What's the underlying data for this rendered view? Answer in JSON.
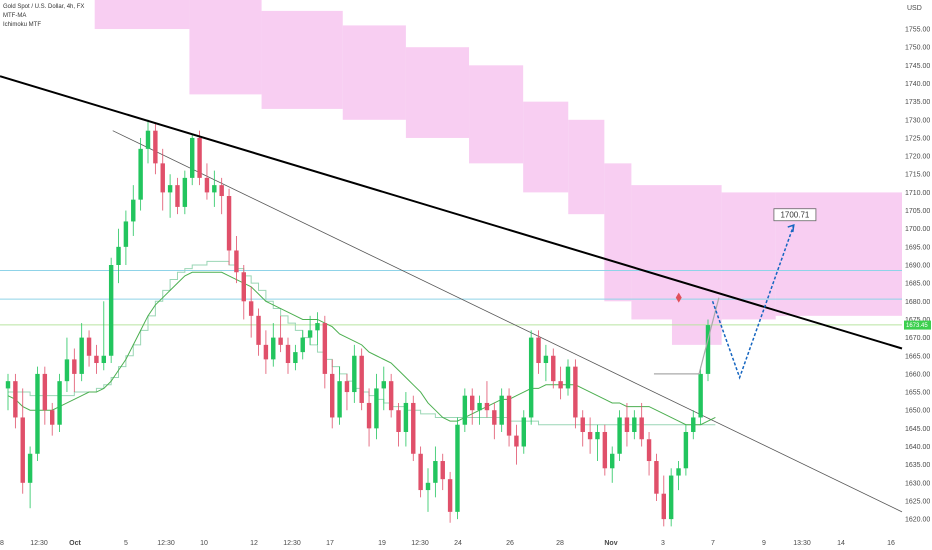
{
  "legend": {
    "symbol": "Gold Spot / U.S. Dollar, 4h, FX",
    "indicator_1": "MTF-MA",
    "indicator_2": "Ichimoku MTF"
  },
  "colors": {
    "background": "#ffffff",
    "bull": "#22c55e",
    "bear": "#e0506a",
    "cloud": "#f7c6f0",
    "ma": "#4caf50",
    "ichimoku": "#9ad6b5",
    "resistance": "#000000",
    "trendline": "#555555",
    "horizontal": "#8fd3e8",
    "projection": "#1565c0",
    "price_tag": "#3ccf4e"
  },
  "chart_data": {
    "type": "candlestick",
    "title": "Gold Spot / U.S. Dollar, 4h, FX",
    "currency": "USD",
    "ylim": [
      1617,
      1763
    ],
    "y_ticks": [
      1620,
      1625,
      1630,
      1635,
      1640,
      1645,
      1650,
      1655,
      1660,
      1665,
      1670,
      1675,
      1680,
      1685,
      1690,
      1695,
      1700,
      1705,
      1710,
      1715,
      1720,
      1725,
      1730,
      1735,
      1740,
      1745,
      1750,
      1755
    ],
    "x_tick_labels": [
      {
        "label": "8",
        "bold": false
      },
      {
        "label": "12:30",
        "bold": false
      },
      {
        "label": "Oct",
        "bold": true
      },
      {
        "label": "5",
        "bold": false
      },
      {
        "label": "12:30",
        "bold": false
      },
      {
        "label": "10",
        "bold": false
      },
      {
        "label": "12",
        "bold": false
      },
      {
        "label": "12:30",
        "bold": false
      },
      {
        "label": "17",
        "bold": false
      },
      {
        "label": "19",
        "bold": false
      },
      {
        "label": "12:30",
        "bold": false
      },
      {
        "label": "24",
        "bold": false
      },
      {
        "label": "26",
        "bold": false
      },
      {
        "label": "28",
        "bold": false
      },
      {
        "label": "Nov",
        "bold": true
      },
      {
        "label": "3",
        "bold": false
      },
      {
        "label": "7",
        "bold": false
      },
      {
        "label": "9",
        "bold": false
      },
      {
        "label": "13:30",
        "bold": false
      },
      {
        "label": "14",
        "bold": false
      },
      {
        "label": "16",
        "bold": false
      }
    ],
    "current_price_label": "1673.45",
    "target_label": "1700.71",
    "horizontal_levels": [
      1688.5,
      1680.6,
      1673.5
    ],
    "candles": [
      {
        "o": 1656,
        "h": 1660,
        "l": 1650,
        "c": 1658
      },
      {
        "o": 1658,
        "h": 1660,
        "l": 1645,
        "c": 1648
      },
      {
        "o": 1648,
        "h": 1656,
        "l": 1627,
        "c": 1630
      },
      {
        "o": 1630,
        "h": 1640,
        "l": 1623,
        "c": 1638
      },
      {
        "o": 1638,
        "h": 1662,
        "l": 1636,
        "c": 1660
      },
      {
        "o": 1660,
        "h": 1662,
        "l": 1646,
        "c": 1650
      },
      {
        "o": 1650,
        "h": 1652,
        "l": 1643,
        "c": 1646
      },
      {
        "o": 1646,
        "h": 1660,
        "l": 1644,
        "c": 1658
      },
      {
        "o": 1658,
        "h": 1670,
        "l": 1655,
        "c": 1664
      },
      {
        "o": 1664,
        "h": 1667,
        "l": 1655,
        "c": 1660
      },
      {
        "o": 1660,
        "h": 1674,
        "l": 1658,
        "c": 1670
      },
      {
        "o": 1670,
        "h": 1672,
        "l": 1662,
        "c": 1665
      },
      {
        "o": 1665,
        "h": 1668,
        "l": 1660,
        "c": 1663
      },
      {
        "o": 1663,
        "h": 1680,
        "l": 1661,
        "c": 1665
      },
      {
        "o": 1665,
        "h": 1692,
        "l": 1663,
        "c": 1690
      },
      {
        "o": 1690,
        "h": 1700,
        "l": 1685,
        "c": 1695
      },
      {
        "o": 1695,
        "h": 1705,
        "l": 1690,
        "c": 1702
      },
      {
        "o": 1702,
        "h": 1712,
        "l": 1698,
        "c": 1708
      },
      {
        "o": 1708,
        "h": 1725,
        "l": 1705,
        "c": 1722
      },
      {
        "o": 1722,
        "h": 1730,
        "l": 1718,
        "c": 1727
      },
      {
        "o": 1727,
        "h": 1729,
        "l": 1715,
        "c": 1718
      },
      {
        "o": 1718,
        "h": 1722,
        "l": 1705,
        "c": 1710
      },
      {
        "o": 1710,
        "h": 1715,
        "l": 1703,
        "c": 1712
      },
      {
        "o": 1712,
        "h": 1714,
        "l": 1704,
        "c": 1706
      },
      {
        "o": 1706,
        "h": 1716,
        "l": 1704,
        "c": 1714
      },
      {
        "o": 1714,
        "h": 1726,
        "l": 1712,
        "c": 1725
      },
      {
        "o": 1725,
        "h": 1727,
        "l": 1712,
        "c": 1714
      },
      {
        "o": 1714,
        "h": 1718,
        "l": 1708,
        "c": 1710
      },
      {
        "o": 1710,
        "h": 1716,
        "l": 1706,
        "c": 1712
      },
      {
        "o": 1712,
        "h": 1714,
        "l": 1704,
        "c": 1709
      },
      {
        "o": 1709,
        "h": 1711,
        "l": 1690,
        "c": 1694
      },
      {
        "o": 1694,
        "h": 1698,
        "l": 1685,
        "c": 1688
      },
      {
        "o": 1688,
        "h": 1690,
        "l": 1675,
        "c": 1680
      },
      {
        "o": 1680,
        "h": 1684,
        "l": 1670,
        "c": 1676
      },
      {
        "o": 1676,
        "h": 1678,
        "l": 1665,
        "c": 1668
      },
      {
        "o": 1668,
        "h": 1672,
        "l": 1660,
        "c": 1664
      },
      {
        "o": 1664,
        "h": 1674,
        "l": 1662,
        "c": 1670
      },
      {
        "o": 1670,
        "h": 1676,
        "l": 1666,
        "c": 1668
      },
      {
        "o": 1668,
        "h": 1670,
        "l": 1660,
        "c": 1663
      },
      {
        "o": 1663,
        "h": 1668,
        "l": 1661,
        "c": 1666
      },
      {
        "o": 1666,
        "h": 1672,
        "l": 1664,
        "c": 1670
      },
      {
        "o": 1670,
        "h": 1676,
        "l": 1668,
        "c": 1672
      },
      {
        "o": 1672,
        "h": 1677,
        "l": 1668,
        "c": 1674
      },
      {
        "o": 1674,
        "h": 1676,
        "l": 1656,
        "c": 1660
      },
      {
        "o": 1660,
        "h": 1664,
        "l": 1645,
        "c": 1648
      },
      {
        "o": 1648,
        "h": 1662,
        "l": 1646,
        "c": 1658
      },
      {
        "o": 1658,
        "h": 1660,
        "l": 1650,
        "c": 1655
      },
      {
        "o": 1655,
        "h": 1668,
        "l": 1652,
        "c": 1665
      },
      {
        "o": 1665,
        "h": 1667,
        "l": 1650,
        "c": 1652
      },
      {
        "o": 1652,
        "h": 1656,
        "l": 1640,
        "c": 1645
      },
      {
        "o": 1645,
        "h": 1660,
        "l": 1642,
        "c": 1656
      },
      {
        "o": 1656,
        "h": 1662,
        "l": 1650,
        "c": 1658
      },
      {
        "o": 1658,
        "h": 1660,
        "l": 1648,
        "c": 1650
      },
      {
        "o": 1650,
        "h": 1652,
        "l": 1640,
        "c": 1644
      },
      {
        "o": 1644,
        "h": 1655,
        "l": 1640,
        "c": 1652
      },
      {
        "o": 1652,
        "h": 1654,
        "l": 1636,
        "c": 1638
      },
      {
        "o": 1638,
        "h": 1640,
        "l": 1626,
        "c": 1628
      },
      {
        "o": 1628,
        "h": 1634,
        "l": 1622,
        "c": 1630
      },
      {
        "o": 1630,
        "h": 1640,
        "l": 1626,
        "c": 1636
      },
      {
        "o": 1636,
        "h": 1638,
        "l": 1628,
        "c": 1631
      },
      {
        "o": 1631,
        "h": 1633,
        "l": 1619,
        "c": 1622
      },
      {
        "o": 1622,
        "h": 1648,
        "l": 1620,
        "c": 1646
      },
      {
        "o": 1646,
        "h": 1656,
        "l": 1644,
        "c": 1654
      },
      {
        "o": 1654,
        "h": 1656,
        "l": 1646,
        "c": 1650
      },
      {
        "o": 1650,
        "h": 1654,
        "l": 1646,
        "c": 1652
      },
      {
        "o": 1652,
        "h": 1658,
        "l": 1648,
        "c": 1650
      },
      {
        "o": 1650,
        "h": 1652,
        "l": 1642,
        "c": 1646
      },
      {
        "o": 1646,
        "h": 1656,
        "l": 1644,
        "c": 1654
      },
      {
        "o": 1654,
        "h": 1656,
        "l": 1640,
        "c": 1643
      },
      {
        "o": 1643,
        "h": 1646,
        "l": 1635,
        "c": 1640
      },
      {
        "o": 1640,
        "h": 1650,
        "l": 1638,
        "c": 1648
      },
      {
        "o": 1648,
        "h": 1672,
        "l": 1646,
        "c": 1670
      },
      {
        "o": 1670,
        "h": 1672,
        "l": 1660,
        "c": 1663
      },
      {
        "o": 1663,
        "h": 1668,
        "l": 1658,
        "c": 1665
      },
      {
        "o": 1665,
        "h": 1667,
        "l": 1656,
        "c": 1658
      },
      {
        "o": 1658,
        "h": 1662,
        "l": 1653,
        "c": 1656
      },
      {
        "o": 1656,
        "h": 1664,
        "l": 1654,
        "c": 1662
      },
      {
        "o": 1662,
        "h": 1664,
        "l": 1645,
        "c": 1648
      },
      {
        "o": 1648,
        "h": 1650,
        "l": 1640,
        "c": 1644
      },
      {
        "o": 1644,
        "h": 1648,
        "l": 1638,
        "c": 1642
      },
      {
        "o": 1642,
        "h": 1646,
        "l": 1636,
        "c": 1644
      },
      {
        "o": 1644,
        "h": 1646,
        "l": 1632,
        "c": 1634
      },
      {
        "o": 1634,
        "h": 1640,
        "l": 1630,
        "c": 1638
      },
      {
        "o": 1638,
        "h": 1650,
        "l": 1636,
        "c": 1648
      },
      {
        "o": 1648,
        "h": 1652,
        "l": 1640,
        "c": 1644
      },
      {
        "o": 1644,
        "h": 1650,
        "l": 1642,
        "c": 1648
      },
      {
        "o": 1648,
        "h": 1652,
        "l": 1640,
        "c": 1642
      },
      {
        "o": 1642,
        "h": 1644,
        "l": 1632,
        "c": 1636
      },
      {
        "o": 1636,
        "h": 1638,
        "l": 1625,
        "c": 1627
      },
      {
        "o": 1627,
        "h": 1632,
        "l": 1618,
        "c": 1620
      },
      {
        "o": 1620,
        "h": 1634,
        "l": 1618,
        "c": 1632
      },
      {
        "o": 1632,
        "h": 1636,
        "l": 1628,
        "c": 1634
      },
      {
        "o": 1634,
        "h": 1646,
        "l": 1632,
        "c": 1644
      },
      {
        "o": 1644,
        "h": 1650,
        "l": 1642,
        "c": 1648
      },
      {
        "o": 1648,
        "h": 1662,
        "l": 1646,
        "c": 1660
      },
      {
        "o": 1660,
        "h": 1675,
        "l": 1658,
        "c": 1673.45
      }
    ],
    "series": [
      {
        "name": "MTF-MA",
        "values": [
          1654,
          1653,
          1651,
          1650,
          1650,
          1650,
          1650,
          1651,
          1652,
          1653,
          1654,
          1655,
          1655,
          1656,
          1658,
          1661,
          1664,
          1668,
          1672,
          1676,
          1679,
          1681,
          1683,
          1685,
          1687,
          1688,
          1688,
          1688,
          1688,
          1688,
          1687,
          1686,
          1685,
          1684,
          1682,
          1680,
          1679,
          1678,
          1677,
          1676,
          1675,
          1675,
          1675,
          1674,
          1673,
          1671,
          1670,
          1669,
          1668,
          1666,
          1665,
          1664,
          1663,
          1661,
          1659,
          1657,
          1655,
          1652,
          1650,
          1648,
          1647,
          1647,
          1648,
          1649,
          1650,
          1651,
          1652,
          1653,
          1653,
          1654,
          1655,
          1656,
          1656,
          1657,
          1657,
          1657,
          1657,
          1657,
          1656,
          1655,
          1654,
          1653,
          1652,
          1652,
          1651,
          1651,
          1651,
          1651,
          1650,
          1649,
          1648,
          1647,
          1646,
          1646,
          1646,
          1647,
          1648
        ]
      },
      {
        "name": "Ichimoku MTF",
        "values": [
          1655,
          1655,
          1655,
          1654,
          1654,
          1654,
          1654,
          1654,
          1654,
          1655,
          1655,
          1655,
          1656,
          1657,
          1659,
          1662,
          1665,
          1668,
          1672,
          1676,
          1680,
          1683,
          1686,
          1688,
          1689,
          1690,
          1690,
          1691,
          1691,
          1691,
          1690,
          1689,
          1687,
          1685,
          1683,
          1680,
          1678,
          1676,
          1674,
          1672,
          1670,
          1668,
          1666,
          1664,
          1662,
          1660,
          1658,
          1656,
          1655,
          1654,
          1653,
          1652,
          1651,
          1651,
          1650,
          1650,
          1649,
          1649,
          1648,
          1648,
          1648,
          1648,
          1648,
          1648,
          1648,
          1648,
          1648,
          1648,
          1647,
          1647,
          1647,
          1647,
          1646,
          1646,
          1646,
          1646,
          1646,
          1646,
          1646,
          1646,
          1646,
          1646,
          1646,
          1646,
          1646,
          1646,
          1646,
          1646,
          1646,
          1646,
          1646,
          1646,
          1646,
          1646,
          1646,
          1646,
          1646
        ]
      }
    ],
    "cloud": [
      {
        "x0": 0.105,
        "x1": 0.21,
        "top": 1763,
        "bottom": 1755
      },
      {
        "x0": 0.21,
        "x1": 0.29,
        "top": 1763,
        "bottom": 1737
      },
      {
        "x0": 0.29,
        "x1": 0.38,
        "top": 1760,
        "bottom": 1733
      },
      {
        "x0": 0.38,
        "x1": 0.45,
        "top": 1756,
        "bottom": 1730
      },
      {
        "x0": 0.45,
        "x1": 0.52,
        "top": 1750,
        "bottom": 1725
      },
      {
        "x0": 0.52,
        "x1": 0.58,
        "top": 1745,
        "bottom": 1718
      },
      {
        "x0": 0.58,
        "x1": 0.63,
        "top": 1735,
        "bottom": 1710
      },
      {
        "x0": 0.63,
        "x1": 0.67,
        "top": 1730,
        "bottom": 1704
      },
      {
        "x0": 0.67,
        "x1": 0.7,
        "top": 1718,
        "bottom": 1680
      },
      {
        "x0": 0.7,
        "x1": 0.745,
        "top": 1712,
        "bottom": 1675
      },
      {
        "x0": 0.745,
        "x1": 0.8,
        "top": 1712,
        "bottom": 1668
      },
      {
        "x0": 0.8,
        "x1": 0.86,
        "top": 1710,
        "bottom": 1675
      },
      {
        "x0": 0.86,
        "x1": 1.0,
        "top": 1710,
        "bottom": 1676
      }
    ],
    "resistance_line": {
      "p1": [
        0,
        1742
      ],
      "p2": [
        1.0,
        1667
      ]
    },
    "thin_trendline": {
      "p1": [
        0.125,
        1727
      ],
      "p2": [
        1.0,
        1622
      ]
    },
    "projection_path": [
      [
        0.79,
        1680
      ],
      [
        0.82,
        1659
      ],
      [
        0.88,
        1701
      ]
    ],
    "grey_path": [
      [
        0.725,
        1660
      ],
      [
        0.775,
        1660
      ],
      [
        0.797,
        1681
      ]
    ]
  }
}
